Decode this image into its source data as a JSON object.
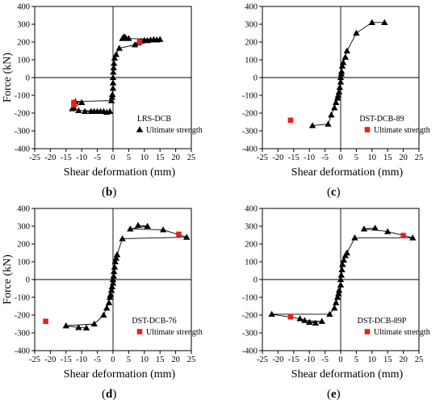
{
  "chart_data": [
    {
      "type": "scatter",
      "panel_label": "b",
      "xlabel": "Shear deformation (mm)",
      "ylabel": "Force (kN)",
      "xlim": [
        -25,
        25
      ],
      "ylim": [
        -400,
        400
      ],
      "xticks": [
        -25,
        -20,
        -15,
        -10,
        -5,
        0,
        5,
        10,
        15,
        20,
        25
      ],
      "yticks": [
        -400,
        -300,
        -200,
        -100,
        0,
        100,
        200,
        300,
        400
      ],
      "legend_specimen": "LRS-DCB",
      "legend_series_label": "Ultimate strength",
      "legend_marker": "triangle",
      "series": [
        {
          "marker": "triangle",
          "color": "#000000",
          "points": [
            [
              -13,
              -175
            ],
            [
              -12.5,
              -170
            ],
            [
              -12,
              -135
            ],
            [
              -11,
              -185
            ],
            [
              -10,
              -140
            ],
            [
              -9,
              -190
            ],
            [
              -7,
              -190
            ],
            [
              -6,
              -190
            ],
            [
              -5,
              -190
            ],
            [
              -4,
              -190
            ],
            [
              -3,
              -190
            ],
            [
              -2,
              -195
            ],
            [
              -1,
              -190
            ],
            [
              -0.5,
              -130
            ],
            [
              -0.3,
              -110
            ],
            [
              -0.2,
              -95
            ],
            [
              0,
              -60
            ],
            [
              0,
              -30
            ],
            [
              0,
              0
            ],
            [
              0.1,
              30
            ],
            [
              0.2,
              55
            ],
            [
              0.3,
              80
            ],
            [
              0.5,
              110
            ],
            [
              1,
              130
            ],
            [
              2,
              165
            ],
            [
              3,
              220
            ],
            [
              3.5,
              230
            ],
            [
              4,
              225
            ],
            [
              5,
              220
            ],
            [
              7,
              185
            ],
            [
              8,
              195
            ],
            [
              9,
              205
            ],
            [
              10,
              210
            ],
            [
              11,
              208
            ],
            [
              12,
              212
            ],
            [
              13,
              215
            ],
            [
              14,
              212
            ],
            [
              15,
              215
            ]
          ]
        },
        {
          "marker": "square",
          "color": "#e8211c",
          "points": [
            [
              -12.5,
              -140
            ],
            [
              -12.5,
              -155
            ],
            [
              8.5,
              200
            ]
          ]
        }
      ]
    },
    {
      "type": "scatter",
      "panel_label": "c",
      "xlabel": "Shear deformation (mm)",
      "ylabel": "",
      "xlim": [
        -25,
        25
      ],
      "ylim": [
        -400,
        400
      ],
      "xticks": [
        -25,
        -20,
        -15,
        -10,
        -5,
        0,
        5,
        10,
        15,
        20,
        25
      ],
      "yticks": [
        -400,
        -300,
        -200,
        -100,
        0,
        100,
        200,
        300,
        400
      ],
      "legend_specimen": "DST-DCB-89",
      "legend_series_label": "Ultimate strength",
      "legend_marker": "square",
      "series": [
        {
          "marker": "triangle",
          "color": "#000000",
          "points": [
            [
              -9,
              -270
            ],
            [
              -4,
              -262
            ],
            [
              -3,
              -210
            ],
            [
              -2,
              -170
            ],
            [
              -1.5,
              -140
            ],
            [
              -1,
              -115
            ],
            [
              -0.8,
              -100
            ],
            [
              -0.5,
              -80
            ],
            [
              -0.3,
              -55
            ],
            [
              0,
              -25
            ],
            [
              0,
              0
            ],
            [
              0.2,
              20
            ],
            [
              0.3,
              35
            ],
            [
              0.5,
              65
            ],
            [
              0.8,
              85
            ],
            [
              1.5,
              115
            ],
            [
              2,
              150
            ],
            [
              5,
              250
            ],
            [
              10,
              310
            ],
            [
              14,
              310
            ]
          ]
        },
        {
          "marker": "square",
          "color": "#e8211c",
          "points": [
            [
              -16,
              -240
            ]
          ]
        }
      ]
    },
    {
      "type": "scatter",
      "panel_label": "d",
      "xlabel": "Shear deformation (mm)",
      "ylabel": "Force (kN)",
      "xlim": [
        -25,
        25
      ],
      "ylim": [
        -400,
        400
      ],
      "xticks": [
        -25,
        -20,
        -15,
        -10,
        -5,
        0,
        5,
        10,
        15,
        20,
        25
      ],
      "yticks": [
        -400,
        -300,
        -200,
        -100,
        0,
        100,
        200,
        300,
        400
      ],
      "legend_specimen": "DST-DCB-76",
      "legend_series_label": "Ultimate strength",
      "legend_marker": "square",
      "series": [
        {
          "marker": "triangle",
          "color": "#000000",
          "points": [
            [
              -15,
              -260
            ],
            [
              -11,
              -270
            ],
            [
              -8.5,
              -272
            ],
            [
              -6,
              -250
            ],
            [
              -3,
              -200
            ],
            [
              -2,
              -160
            ],
            [
              -1.3,
              -130
            ],
            [
              -1,
              -100
            ],
            [
              -0.8,
              -85
            ],
            [
              -0.5,
              -60
            ],
            [
              -0.3,
              -40
            ],
            [
              0,
              -20
            ],
            [
              0,
              0
            ],
            [
              0.2,
              20
            ],
            [
              0.3,
              45
            ],
            [
              0.5,
              70
            ],
            [
              0.7,
              100
            ],
            [
              1,
              120
            ],
            [
              1.3,
              140
            ],
            [
              3,
              230
            ],
            [
              5.5,
              285
            ],
            [
              8,
              305
            ],
            [
              11,
              300
            ],
            [
              16,
              280
            ],
            [
              23.5,
              238
            ]
          ]
        },
        {
          "marker": "square",
          "color": "#e8211c",
          "points": [
            [
              -21.5,
              -235
            ],
            [
              21,
              255
            ]
          ]
        }
      ]
    },
    {
      "type": "scatter",
      "panel_label": "e",
      "xlabel": "Shear deformation (mm)",
      "ylabel": "",
      "xlim": [
        -25,
        25
      ],
      "ylim": [
        -400,
        400
      ],
      "xticks": [
        -25,
        -20,
        -15,
        -10,
        -5,
        0,
        5,
        10,
        15,
        20,
        25
      ],
      "yticks": [
        -400,
        -300,
        -200,
        -100,
        0,
        100,
        200,
        300,
        400
      ],
      "legend_specimen": "DST-DCB-89P",
      "legend_series_label": "Ultimate strength",
      "legend_marker": "square",
      "series": [
        {
          "marker": "triangle",
          "color": "#000000",
          "points": [
            [
              -22,
              -195
            ],
            [
              -13,
              -220
            ],
            [
              -11.5,
              -230
            ],
            [
              -10,
              -240
            ],
            [
              -8,
              -245
            ],
            [
              -6,
              -235
            ],
            [
              -3.5,
              -195
            ],
            [
              -2,
              -160
            ],
            [
              -1.5,
              -130
            ],
            [
              -1,
              -100
            ],
            [
              -0.7,
              -80
            ],
            [
              -0.5,
              -60
            ],
            [
              0,
              -30
            ],
            [
              0,
              0
            ],
            [
              0.2,
              25
            ],
            [
              0.4,
              55
            ],
            [
              0.6,
              85
            ],
            [
              1,
              110
            ],
            [
              1.5,
              135
            ],
            [
              2,
              150
            ],
            [
              4.5,
              235
            ],
            [
              7.5,
              285
            ],
            [
              11,
              290
            ],
            [
              15,
              270
            ],
            [
              23,
              235
            ]
          ]
        },
        {
          "marker": "square",
          "color": "#e8211c",
          "points": [
            [
              -16,
              -210
            ],
            [
              20,
              248
            ]
          ]
        }
      ]
    }
  ]
}
